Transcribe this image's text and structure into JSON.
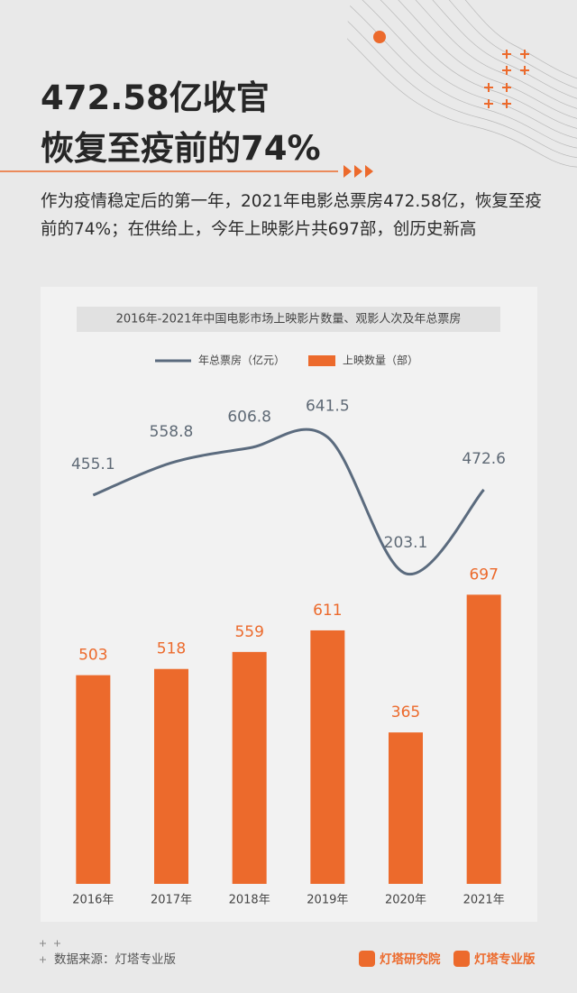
{
  "header": {
    "title_lines": [
      "472.58亿收官",
      "恢复至疫前的74%"
    ],
    "intro": "作为疫情稳定后的第一年，2021年电影总票房472.58亿，恢复至疫前的74%；在供给上，今年上映影片共697部，创历史新高"
  },
  "chart_data": {
    "type": "combo",
    "title": "2016年-2021年中国电影市场上映影片数量、观影人次及年总票房",
    "categories": [
      "2016年",
      "2017年",
      "2018年",
      "2019年",
      "2020年",
      "2021年"
    ],
    "series": [
      {
        "name": "年总票房（亿元）",
        "type": "line",
        "axis": "y2",
        "color": "#5b6b7e",
        "values": [
          455.1,
          558.8,
          606.8,
          641.5,
          203.1,
          472.6
        ]
      },
      {
        "name": "上映数量（部）",
        "type": "bar",
        "color": "#ec6a2c",
        "values": [
          503,
          518,
          559,
          611,
          365,
          697
        ]
      }
    ],
    "ylim": [
      0,
      800
    ],
    "y2lim": [
      0,
      800
    ]
  },
  "footer": {
    "source": "数据来源：灯塔专业版",
    "logos": [
      "灯塔研究院",
      "灯塔专业版"
    ]
  }
}
